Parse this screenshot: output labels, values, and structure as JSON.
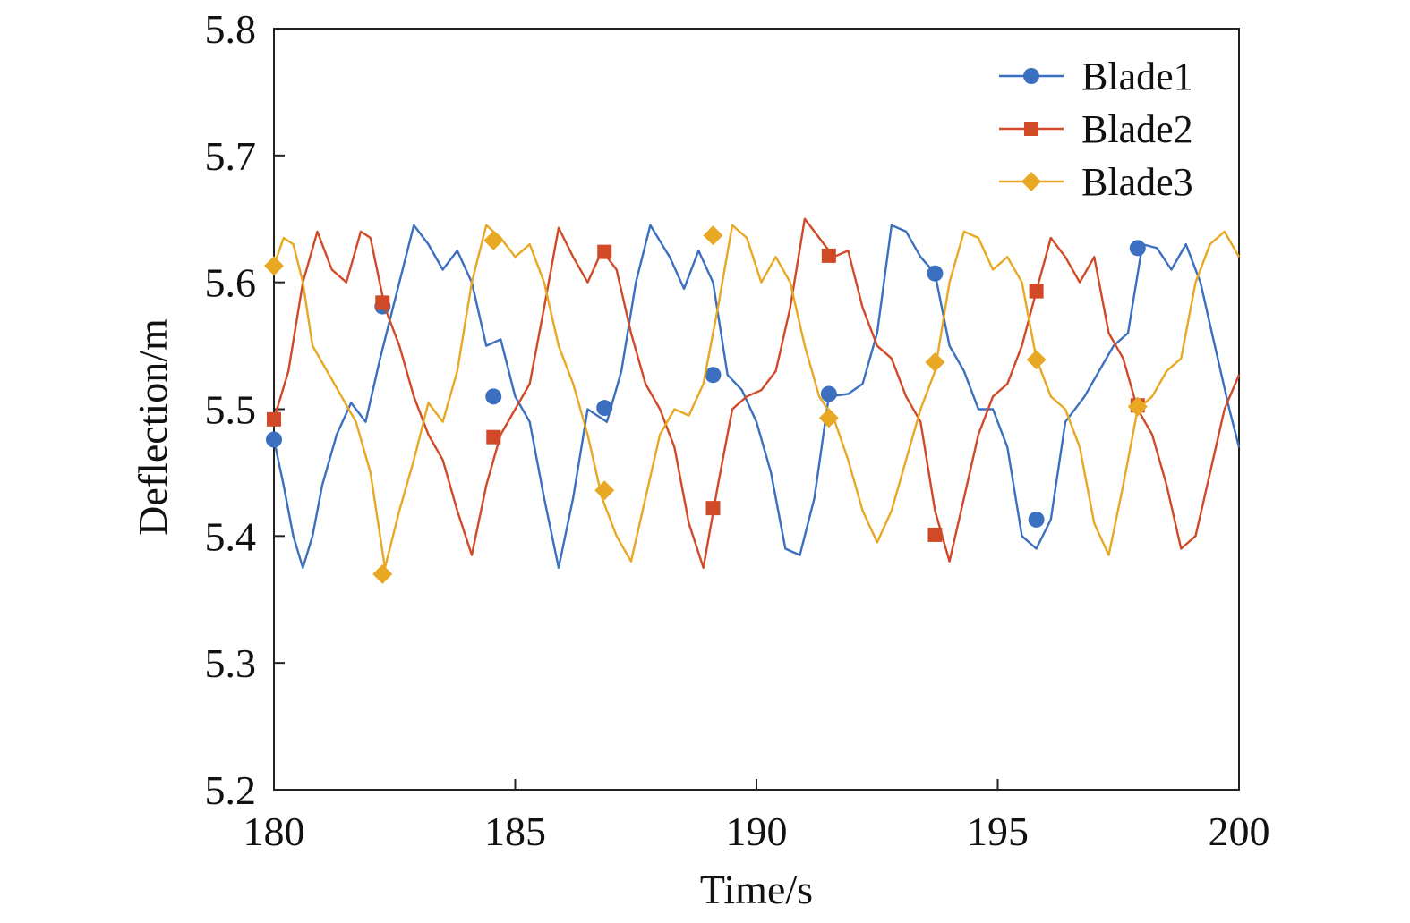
{
  "chart_data": {
    "type": "line",
    "title": "",
    "xlabel": "Time/s",
    "ylabel": "Deflection/m",
    "xlim": [
      180,
      200
    ],
    "ylim": [
      5.2,
      5.8
    ],
    "xticks": [
      180,
      185,
      190,
      195,
      200
    ],
    "yticks": [
      5.2,
      5.3,
      5.4,
      5.5,
      5.6,
      5.7,
      5.8
    ],
    "xtick_labels": [
      "180",
      "185",
      "190",
      "195",
      "200"
    ],
    "ytick_labels": [
      "5.2",
      "5.3",
      "5.4",
      "5.5",
      "5.6",
      "5.7",
      "5.8"
    ],
    "grid": false,
    "legend_position": "top-right",
    "series": [
      {
        "name": "Blade1",
        "color": "#3b6fbf",
        "marker": "circle",
        "x": [
          180.0,
          180.2,
          180.4,
          180.6,
          180.8,
          181.0,
          181.3,
          181.6,
          181.9,
          182.2,
          182.6,
          182.9,
          183.2,
          183.5,
          183.8,
          184.1,
          184.4,
          184.7,
          185.0,
          185.3,
          185.6,
          185.9,
          186.2,
          186.5,
          186.9,
          187.2,
          187.5,
          187.8,
          188.2,
          188.5,
          188.8,
          189.1,
          189.4,
          189.7,
          190.0,
          190.3,
          190.6,
          190.9,
          191.2,
          191.5,
          191.9,
          192.2,
          192.5,
          192.8,
          193.1,
          193.4,
          193.7,
          194.0,
          194.3,
          194.6,
          194.9,
          195.2,
          195.5,
          195.8,
          196.1,
          196.4,
          196.8,
          197.1,
          197.4,
          197.7,
          198.0,
          198.3,
          198.6,
          198.9,
          199.2,
          199.5,
          199.8,
          200.0
        ],
        "y": [
          5.476,
          5.44,
          5.4,
          5.375,
          5.4,
          5.44,
          5.48,
          5.505,
          5.49,
          5.54,
          5.6,
          5.645,
          5.63,
          5.61,
          5.625,
          5.6,
          5.55,
          5.555,
          5.51,
          5.49,
          5.43,
          5.375,
          5.43,
          5.5,
          5.49,
          5.53,
          5.6,
          5.645,
          5.62,
          5.595,
          5.625,
          5.6,
          5.527,
          5.515,
          5.49,
          5.45,
          5.39,
          5.385,
          5.43,
          5.51,
          5.512,
          5.52,
          5.56,
          5.645,
          5.64,
          5.62,
          5.607,
          5.55,
          5.53,
          5.5,
          5.5,
          5.47,
          5.4,
          5.39,
          5.413,
          5.49,
          5.51,
          5.53,
          5.55,
          5.56,
          5.63,
          5.627,
          5.61,
          5.63,
          5.6,
          5.55,
          5.5,
          5.47
        ],
        "marker_x": [
          180.0,
          182.25,
          184.55,
          186.85,
          189.1,
          191.5,
          193.7,
          195.8,
          197.9
        ],
        "marker_y": [
          5.476,
          5.581,
          5.51,
          5.501,
          5.527,
          5.512,
          5.607,
          5.413,
          5.627
        ]
      },
      {
        "name": "Blade2",
        "color": "#d14a28",
        "marker": "square",
        "x": [
          180.0,
          180.3,
          180.6,
          180.9,
          181.2,
          181.5,
          181.8,
          182.0,
          182.3,
          182.6,
          182.9,
          183.2,
          183.5,
          183.8,
          184.1,
          184.4,
          184.7,
          185.0,
          185.3,
          185.6,
          185.9,
          186.2,
          186.5,
          186.8,
          187.1,
          187.4,
          187.7,
          188.0,
          188.3,
          188.6,
          188.9,
          189.2,
          189.5,
          189.8,
          190.1,
          190.4,
          190.7,
          191.0,
          191.3,
          191.6,
          191.9,
          192.2,
          192.5,
          192.8,
          193.1,
          193.4,
          193.7,
          194.0,
          194.3,
          194.6,
          194.9,
          195.2,
          195.5,
          195.8,
          196.1,
          196.4,
          196.7,
          197.0,
          197.3,
          197.6,
          197.9,
          198.2,
          198.5,
          198.8,
          199.1,
          199.4,
          199.7,
          200.0
        ],
        "y": [
          5.492,
          5.53,
          5.6,
          5.64,
          5.61,
          5.6,
          5.64,
          5.635,
          5.58,
          5.55,
          5.51,
          5.48,
          5.46,
          5.42,
          5.385,
          5.44,
          5.48,
          5.5,
          5.52,
          5.58,
          5.643,
          5.62,
          5.6,
          5.625,
          5.61,
          5.56,
          5.52,
          5.5,
          5.47,
          5.41,
          5.375,
          5.44,
          5.5,
          5.51,
          5.515,
          5.53,
          5.58,
          5.65,
          5.635,
          5.62,
          5.625,
          5.58,
          5.55,
          5.54,
          5.51,
          5.49,
          5.42,
          5.38,
          5.43,
          5.48,
          5.51,
          5.52,
          5.55,
          5.593,
          5.635,
          5.62,
          5.6,
          5.62,
          5.56,
          5.54,
          5.5,
          5.48,
          5.44,
          5.39,
          5.4,
          5.45,
          5.5,
          5.527
        ],
        "marker_x": [
          180.0,
          182.25,
          184.55,
          186.85,
          189.1,
          191.5,
          193.7,
          195.8,
          197.9
        ],
        "marker_y": [
          5.492,
          5.584,
          5.478,
          5.624,
          5.422,
          5.621,
          5.401,
          5.593,
          5.503
        ]
      },
      {
        "name": "Blade3",
        "color": "#e8a823",
        "marker": "diamond",
        "x": [
          180.0,
          180.2,
          180.4,
          180.6,
          180.8,
          181.1,
          181.4,
          181.7,
          182.0,
          182.3,
          182.6,
          182.9,
          183.2,
          183.5,
          183.8,
          184.1,
          184.4,
          184.7,
          185.0,
          185.3,
          185.6,
          185.9,
          186.2,
          186.5,
          186.8,
          187.1,
          187.4,
          187.7,
          188.0,
          188.3,
          188.6,
          188.9,
          189.2,
          189.5,
          189.8,
          190.1,
          190.4,
          190.7,
          191.0,
          191.3,
          191.6,
          191.9,
          192.2,
          192.5,
          192.8,
          193.1,
          193.4,
          193.7,
          194.0,
          194.3,
          194.6,
          194.9,
          195.2,
          195.5,
          195.8,
          196.1,
          196.4,
          196.7,
          197.0,
          197.3,
          197.6,
          197.9,
          198.2,
          198.5,
          198.8,
          199.1,
          199.4,
          199.7,
          200.0
        ],
        "y": [
          5.613,
          5.635,
          5.63,
          5.6,
          5.55,
          5.53,
          5.51,
          5.49,
          5.45,
          5.375,
          5.42,
          5.46,
          5.505,
          5.49,
          5.53,
          5.6,
          5.645,
          5.635,
          5.62,
          5.63,
          5.6,
          5.55,
          5.52,
          5.48,
          5.43,
          5.4,
          5.38,
          5.43,
          5.48,
          5.5,
          5.495,
          5.52,
          5.58,
          5.645,
          5.635,
          5.6,
          5.62,
          5.6,
          5.55,
          5.51,
          5.493,
          5.46,
          5.42,
          5.395,
          5.42,
          5.46,
          5.5,
          5.53,
          5.6,
          5.64,
          5.635,
          5.61,
          5.62,
          5.6,
          5.54,
          5.51,
          5.5,
          5.47,
          5.41,
          5.385,
          5.44,
          5.5,
          5.51,
          5.53,
          5.54,
          5.6,
          5.63,
          5.64,
          5.62
        ],
        "marker_x": [
          180.0,
          182.25,
          184.55,
          186.85,
          189.1,
          191.5,
          193.7,
          195.8,
          197.9
        ],
        "marker_y": [
          5.613,
          5.37,
          5.633,
          5.436,
          5.637,
          5.493,
          5.537,
          5.539,
          5.502
        ]
      }
    ]
  }
}
